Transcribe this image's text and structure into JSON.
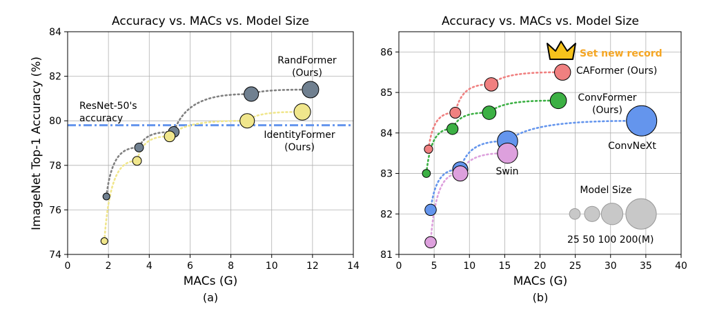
{
  "figure": {
    "ylabel": "ImageNet Top-1 Accuracy (%)"
  },
  "chart_data": [
    {
      "type": "scatter",
      "title": "Accuracy vs. MACs vs. Model Size",
      "xlabel": "MACs (G)",
      "ylabel": "ImageNet Top-1 Accuracy (%)",
      "caption": "(a)",
      "xlim": [
        0,
        14
      ],
      "ylim": [
        74,
        84
      ],
      "xticks": [
        0,
        2,
        4,
        6,
        8,
        10,
        12,
        14
      ],
      "yticks": [
        74,
        76,
        78,
        80,
        82,
        84
      ],
      "grid": true,
      "series": [
        {
          "name": "RandFormer (Ours)",
          "color": "#708090",
          "line_color": "#808080",
          "points": [
            [
              1.9,
              76.6
            ],
            [
              3.5,
              78.8
            ],
            [
              5.2,
              79.5
            ],
            [
              9.0,
              81.2
            ],
            [
              11.9,
              81.4
            ]
          ],
          "sizes": [
            12,
            21,
            31,
            56,
            73
          ]
        },
        {
          "name": "IdentityFormer (Ours)",
          "color": "#f0e68c",
          "line_color": "#f0e68c",
          "points": [
            [
              1.8,
              74.6
            ],
            [
              3.4,
              78.2
            ],
            [
              5.0,
              79.3
            ],
            [
              8.8,
              80.0
            ],
            [
              11.5,
              80.4
            ]
          ],
          "sizes": [
            12,
            21,
            31,
            56,
            73
          ]
        }
      ],
      "reference_line": {
        "y": 79.8,
        "color": "#6495ed",
        "label": "ResNet-50's accuracy"
      },
      "annotations": {
        "randformer": "RandFormer\n(Ours)",
        "identityformer": "IdentityFormer\n(Ours)",
        "resnet": "ResNet-50's\naccuracy"
      }
    },
    {
      "type": "scatter",
      "title": "Accuracy vs. MACs vs. Model Size",
      "xlabel": "MACs (G)",
      "caption": "(b)",
      "xlim": [
        0,
        40
      ],
      "ylim": [
        81,
        86.5
      ],
      "xticks": [
        0,
        5,
        10,
        15,
        20,
        25,
        30,
        35,
        40
      ],
      "yticks": [
        81,
        82,
        83,
        84,
        85,
        86
      ],
      "grid": true,
      "series": [
        {
          "name": "CAFormer (Ours)",
          "color": "#f08080",
          "line_color": "#f08080",
          "points": [
            [
              4.2,
              83.6
            ],
            [
              8.0,
              84.5
            ],
            [
              13.1,
              85.2
            ],
            [
              23.2,
              85.5
            ]
          ],
          "sizes": [
            15,
            26,
            39,
            56
          ]
        },
        {
          "name": "ConvFormer (Ours)",
          "color": "#3cb044",
          "line_color": "#3cb044",
          "points": [
            [
              3.9,
              83.0
            ],
            [
              7.6,
              84.1
            ],
            [
              12.8,
              84.5
            ],
            [
              22.6,
              84.8
            ]
          ],
          "sizes": [
            14,
            27,
            40,
            57
          ]
        },
        {
          "name": "ConvNeXt",
          "color": "#6495ed",
          "line_color": "#6495ed",
          "points": [
            [
              4.5,
              82.1
            ],
            [
              8.7,
              83.1
            ],
            [
              15.4,
              83.8
            ],
            [
              34.4,
              84.3
            ]
          ],
          "sizes": [
            28,
            50,
            89,
            198
          ]
        },
        {
          "name": "Swin",
          "color": "#dda0dd",
          "line_color": "#dda0dd",
          "points": [
            [
              4.5,
              81.3
            ],
            [
              8.7,
              83.0
            ],
            [
              15.4,
              83.5
            ]
          ],
          "sizes": [
            28,
            50,
            88
          ]
        }
      ],
      "size_legend": {
        "title": "Model Size",
        "labels": [
          "25",
          "50",
          "100",
          "200(M)"
        ],
        "sizes": [
          25,
          50,
          100,
          200
        ],
        "color": "#c8c8c8"
      },
      "record_label": "Set new record",
      "record_color": "#f5a623",
      "crown_icon": "crown-icon"
    }
  ]
}
